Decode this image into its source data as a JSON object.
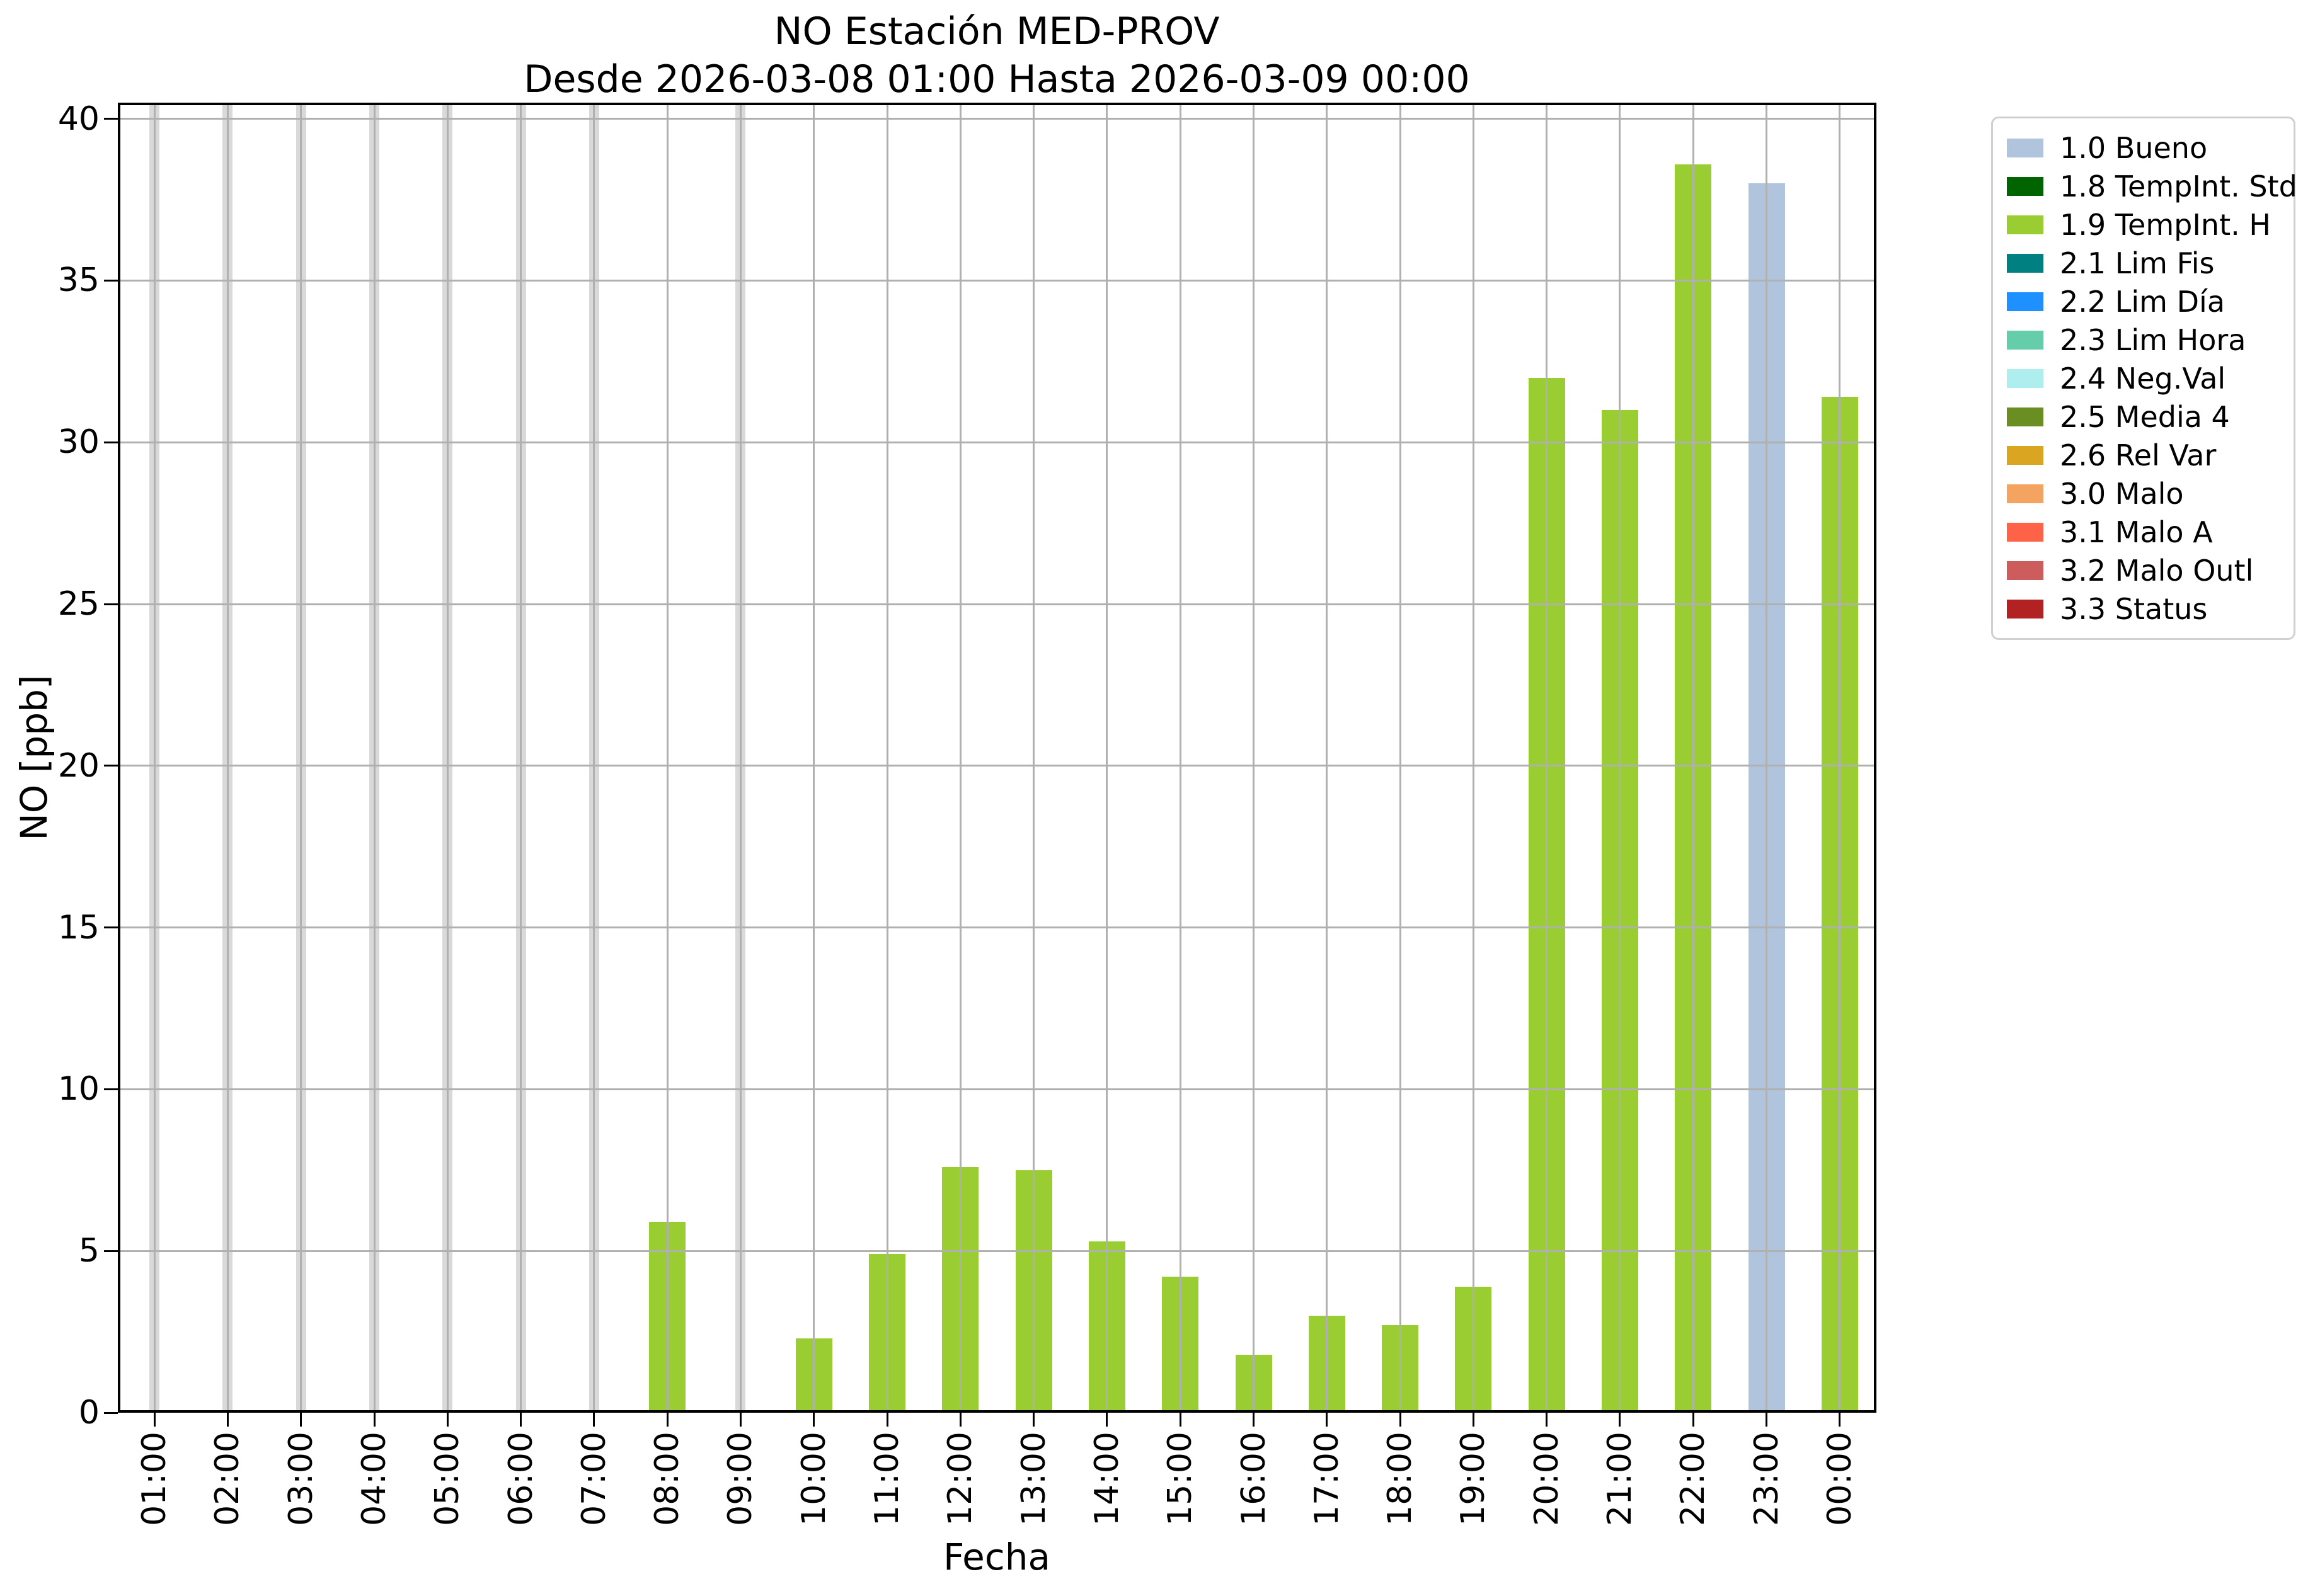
{
  "title": {
    "line1": "NO Estación MED-PROV",
    "line2": "Desde 2026-03-08 01:00 Hasta 2026-03-09 00:00"
  },
  "axes": {
    "xlabel": "Fecha",
    "ylabel": "NO [ppb]"
  },
  "chart_data": {
    "type": "bar",
    "title": "NO Estación MED-PROV",
    "subtitle": "Desde 2026-03-08 01:00 Hasta 2026-03-09 00:00",
    "xlabel": "Fecha",
    "ylabel": "NO [ppb]",
    "ylim": [
      0,
      40.5
    ],
    "yticks": [
      0,
      5,
      10,
      15,
      20,
      25,
      30,
      35,
      40
    ],
    "grid": true,
    "legend_position": "outside upper right",
    "categories": [
      "01:00",
      "02:00",
      "03:00",
      "04:00",
      "05:00",
      "06:00",
      "07:00",
      "08:00",
      "09:00",
      "10:00",
      "11:00",
      "12:00",
      "13:00",
      "14:00",
      "15:00",
      "16:00",
      "17:00",
      "18:00",
      "19:00",
      "20:00",
      "21:00",
      "22:00",
      "23:00",
      "00:00"
    ],
    "series": [
      {
        "name": "1.9 TempInt. H",
        "color": "#9acd32",
        "values": [
          null,
          null,
          null,
          null,
          null,
          null,
          null,
          5.9,
          null,
          2.3,
          4.9,
          7.6,
          7.5,
          5.3,
          4.2,
          1.8,
          3.0,
          2.7,
          3.9,
          32.0,
          31.0,
          38.6,
          null,
          31.4
        ]
      },
      {
        "name": "1.0 Bueno",
        "color": "#b0c4de",
        "values": [
          null,
          null,
          null,
          null,
          null,
          null,
          null,
          null,
          null,
          null,
          null,
          null,
          null,
          null,
          null,
          null,
          null,
          null,
          null,
          null,
          null,
          null,
          38.0,
          null
        ]
      }
    ],
    "no_data_hours": [
      "01:00",
      "02:00",
      "03:00",
      "04:00",
      "05:00",
      "06:00",
      "07:00",
      "09:00"
    ],
    "no_data_color": "#d9d9d9"
  },
  "legend": {
    "items": [
      {
        "label": "1.0 Bueno",
        "color": "#b0c4de"
      },
      {
        "label": "1.8 TempInt. Std",
        "color": "#006400"
      },
      {
        "label": "1.9 TempInt. H",
        "color": "#9acd32"
      },
      {
        "label": "2.1 Lim Fis",
        "color": "#008080"
      },
      {
        "label": "2.2 Lim Día",
        "color": "#1e90ff"
      },
      {
        "label": "2.3 Lim Hora",
        "color": "#66cdaa"
      },
      {
        "label": "2.4 Neg.Val",
        "color": "#afeeee"
      },
      {
        "label": "2.5 Media 4",
        "color": "#6b8e23"
      },
      {
        "label": "2.6 Rel Var",
        "color": "#daa520"
      },
      {
        "label": "3.0 Malo",
        "color": "#f4a460"
      },
      {
        "label": "3.1 Malo A",
        "color": "#ff6347"
      },
      {
        "label": "3.2 Malo Outl",
        "color": "#cd5c5c"
      },
      {
        "label": "3.3 Status",
        "color": "#b22222"
      }
    ]
  },
  "colors": {
    "grid": "#b0b0b0",
    "axis": "#000000",
    "legend_border": "#d0d0d0",
    "background": "#ffffff"
  }
}
